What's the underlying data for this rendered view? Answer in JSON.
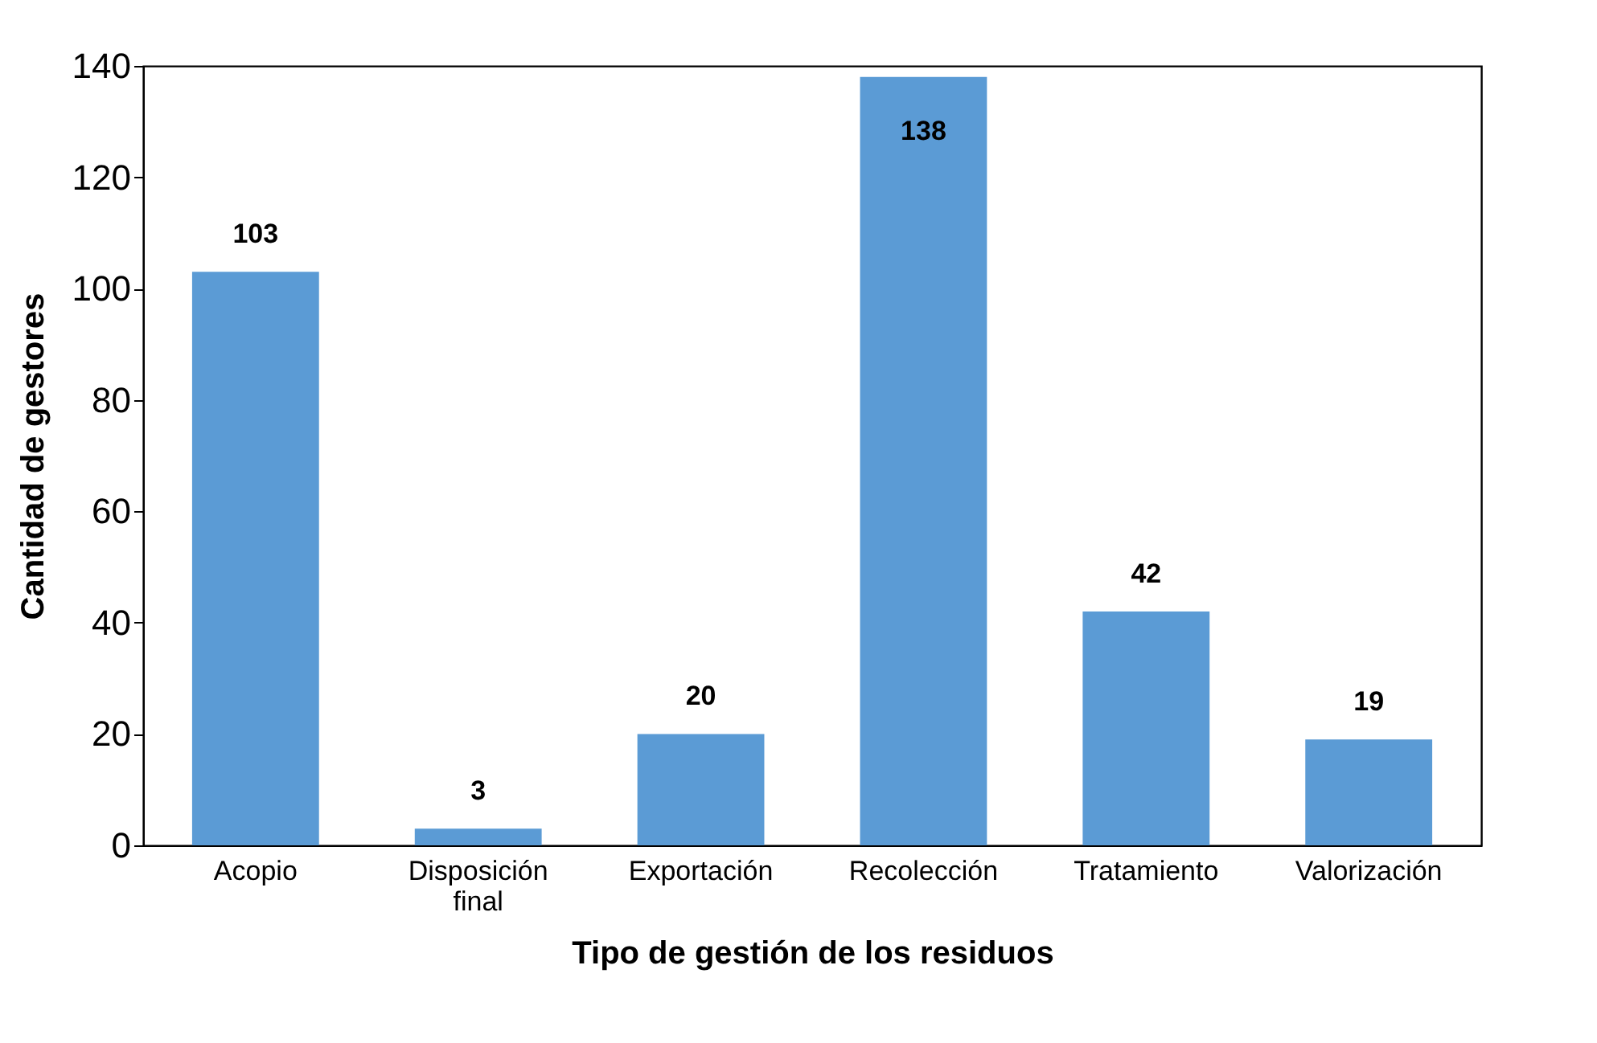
{
  "chart_data": {
    "type": "bar",
    "xlabel": "Tipo de gestión de los residuos",
    "ylabel": "Cantidad de gestores",
    "categories": [
      "Acopio",
      "Disposición final",
      "Exportación",
      "Recolección",
      "Tratamiento",
      "Valorización"
    ],
    "values": [
      103,
      3,
      20,
      138,
      42,
      19
    ],
    "color": "#5b9bd5",
    "ylim": [
      0,
      140
    ],
    "yticks": [
      0,
      20,
      40,
      60,
      80,
      100,
      120,
      140
    ],
    "grid": false,
    "data_labels": true
  }
}
